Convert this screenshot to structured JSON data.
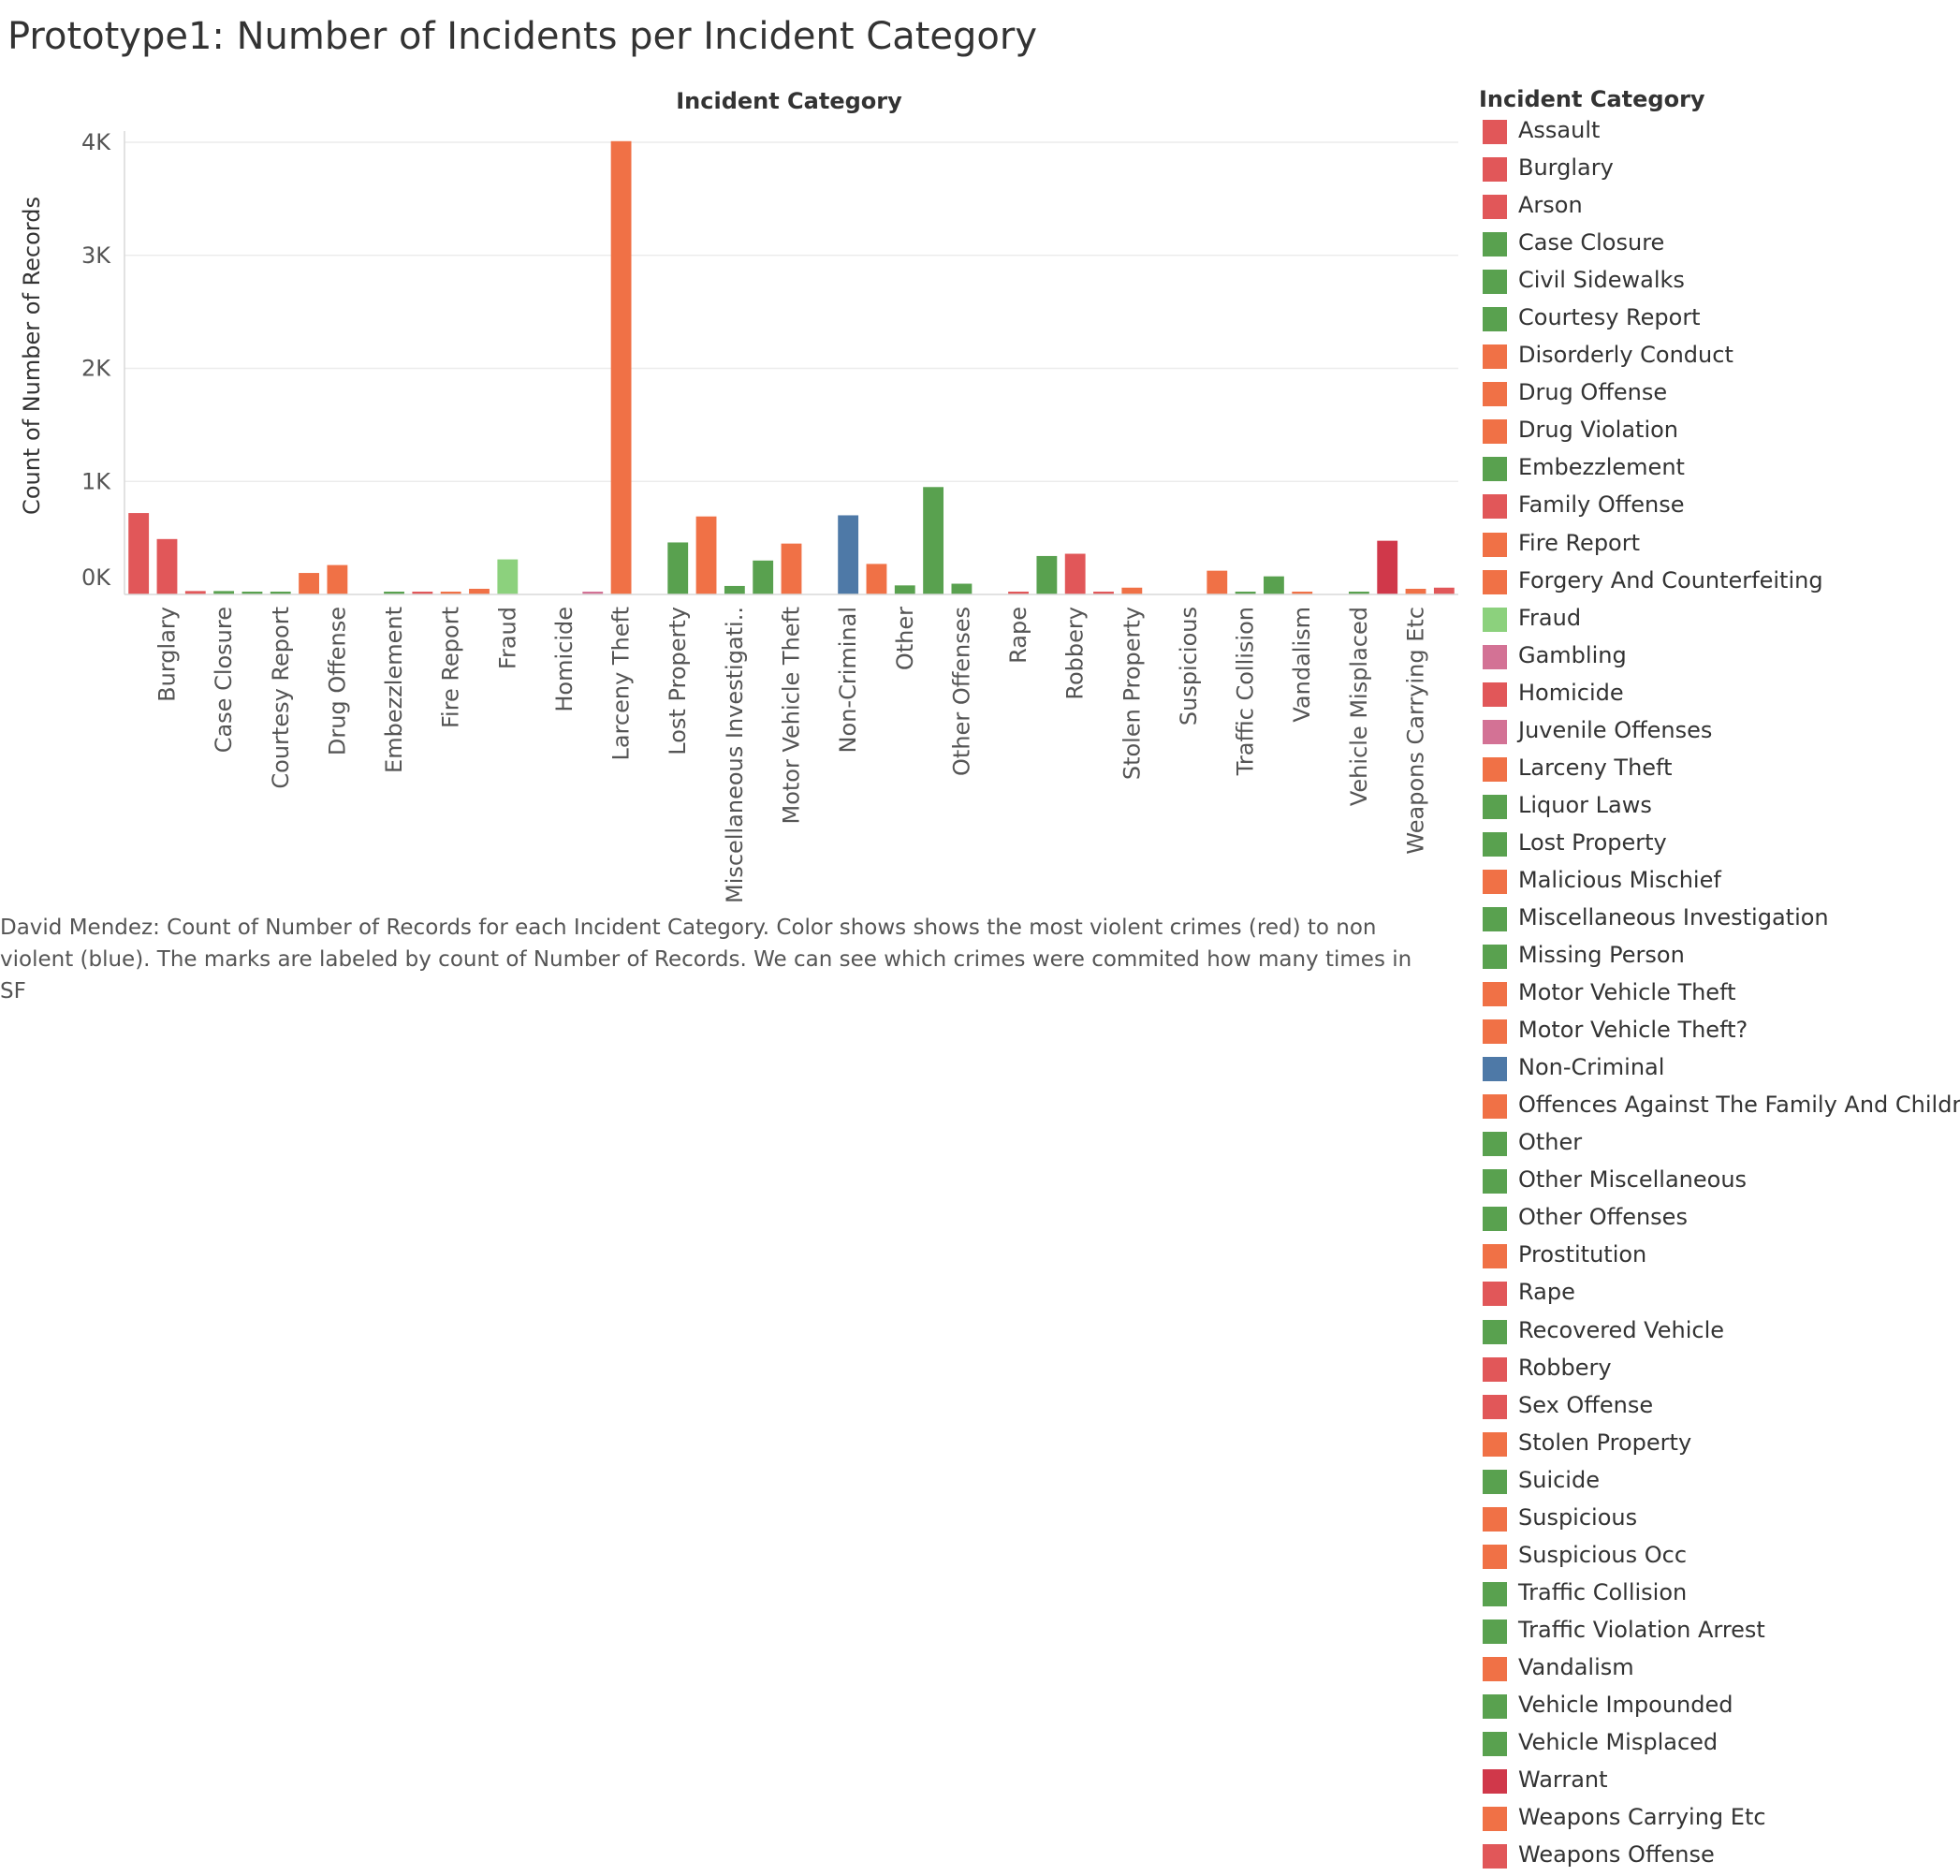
{
  "title": "Prototype1: Number of Incidents per Incident Category",
  "chart_data": {
    "type": "bar",
    "title": "Prototype1: Number of Incidents per Incident Category",
    "xlabel": "Incident Category",
    "ylabel": "Count of Number of Records",
    "ylim": [
      0,
      4000
    ],
    "yticks": [
      {
        "value": 0,
        "label": "0K"
      },
      {
        "value": 1000,
        "label": "1K"
      },
      {
        "value": 2000,
        "label": "2K"
      },
      {
        "value": 3000,
        "label": "3K"
      },
      {
        "value": 4000,
        "label": "4K"
      }
    ],
    "grid": true,
    "legend_position": "right",
    "colors": {
      "violent": "#e15759",
      "property": "#f07146",
      "non_violent": "#59a14f",
      "fraud": "#8cd17d",
      "juvenile": "#d37295",
      "non_criminal": "#4e79a7",
      "warrant": "#d0384a"
    },
    "categories": [
      "Assault",
      "Burglary",
      "Arson",
      "Case Closure",
      "Civil Sidewalks",
      "Courtesy Report",
      "Disorderly Conduct",
      "Drug Offense",
      "Drug Violation",
      "Embezzlement",
      "Family Offense",
      "Fire Report",
      "Forgery And Counterfeiting",
      "Fraud",
      "Gambling",
      "Homicide",
      "Juvenile Offenses",
      "Larceny Theft",
      "Liquor Laws",
      "Lost Property",
      "Malicious Mischief",
      "Miscellaneous Investigation",
      "Missing Person",
      "Motor Vehicle Theft",
      "Motor Vehicle Theft?",
      "Non-Criminal",
      "Offences Against The Family And Children",
      "Other",
      "Other Miscellaneous",
      "Other Offenses",
      "Prostitution",
      "Rape",
      "Recovered Vehicle",
      "Robbery",
      "Sex Offense",
      "Stolen Property",
      "Suicide",
      "Suspicious",
      "Suspicious Occ",
      "Traffic Collision",
      "Traffic Violation Arrest",
      "Vandalism",
      "Vehicle Impounded",
      "Vehicle Misplaced",
      "Warrant",
      "Weapons Carrying Etc",
      "Weapons Offense"
    ],
    "axis_labels": [
      "Burglary",
      "Case Closure",
      "Courtesy Report",
      "Drug Offense",
      "Embezzlement",
      "Fire Report",
      "Fraud",
      "Homicide",
      "Larceny Theft",
      "Lost Property",
      "Miscellaneous Investigati..",
      "Motor Vehicle Theft",
      "Non-Criminal",
      "Other",
      "Other Offenses",
      "Rape",
      "Robbery",
      "Stolen Property",
      "Suspicious",
      "Traffic Collision",
      "Vandalism",
      "Vehicle Misplaced",
      "Weapons Carrying Etc"
    ],
    "series": [
      {
        "values": [
          720,
          490,
          30,
          30,
          15,
          15,
          190,
          260,
          0,
          15,
          12,
          12,
          50,
          310,
          0,
          0,
          10,
          4010,
          0,
          460,
          690,
          75,
          300,
          450,
          0,
          700,
          270,
          80,
          950,
          95,
          0,
          10,
          340,
          360,
          25,
          60,
          0,
          0,
          210,
          10,
          160,
          10,
          0,
          15,
          475,
          50,
          60
        ]
      }
    ],
    "bar_colors": [
      "#e15759",
      "#e15759",
      "#e15759",
      "#59a14f",
      "#59a14f",
      "#59a14f",
      "#f07146",
      "#f07146",
      "#f07146",
      "#59a14f",
      "#e15759",
      "#f07146",
      "#f07146",
      "#8cd17d",
      "#d37295",
      "#e15759",
      "#d37295",
      "#f07146",
      "#59a14f",
      "#59a14f",
      "#f07146",
      "#59a14f",
      "#59a14f",
      "#f07146",
      "#f07146",
      "#4e79a7",
      "#f07146",
      "#59a14f",
      "#59a14f",
      "#59a14f",
      "#f07146",
      "#e15759",
      "#59a14f",
      "#e15759",
      "#e15759",
      "#f07146",
      "#59a14f",
      "#f07146",
      "#f07146",
      "#59a14f",
      "#59a14f",
      "#f07146",
      "#59a14f",
      "#59a14f",
      "#d0384a",
      "#f07146",
      "#e15759"
    ]
  },
  "legend": {
    "title": "Incident Category",
    "items": [
      {
        "label": "Assault",
        "color": "#e15759"
      },
      {
        "label": "Burglary",
        "color": "#e15759"
      },
      {
        "label": "Arson",
        "color": "#e15759"
      },
      {
        "label": "Case Closure",
        "color": "#59a14f"
      },
      {
        "label": "Civil Sidewalks",
        "color": "#59a14f"
      },
      {
        "label": "Courtesy Report",
        "color": "#59a14f"
      },
      {
        "label": "Disorderly Conduct",
        "color": "#f07146"
      },
      {
        "label": "Drug Offense",
        "color": "#f07146"
      },
      {
        "label": "Drug Violation",
        "color": "#f07146"
      },
      {
        "label": "Embezzlement",
        "color": "#59a14f"
      },
      {
        "label": "Family Offense",
        "color": "#e15759"
      },
      {
        "label": "Fire Report",
        "color": "#f07146"
      },
      {
        "label": "Forgery And Counterfeiting",
        "color": "#f07146"
      },
      {
        "label": "Fraud",
        "color": "#8cd17d"
      },
      {
        "label": "Gambling",
        "color": "#d37295"
      },
      {
        "label": "Homicide",
        "color": "#e15759"
      },
      {
        "label": "Juvenile Offenses",
        "color": "#d37295"
      },
      {
        "label": "Larceny Theft",
        "color": "#f07146"
      },
      {
        "label": "Liquor Laws",
        "color": "#59a14f"
      },
      {
        "label": "Lost Property",
        "color": "#59a14f"
      },
      {
        "label": "Malicious Mischief",
        "color": "#f07146"
      },
      {
        "label": "Miscellaneous Investigation",
        "color": "#59a14f"
      },
      {
        "label": "Missing Person",
        "color": "#59a14f"
      },
      {
        "label": "Motor Vehicle Theft",
        "color": "#f07146"
      },
      {
        "label": "Motor Vehicle Theft?",
        "color": "#f07146"
      },
      {
        "label": "Non-Criminal",
        "color": "#4e79a7"
      },
      {
        "label": "Offences Against The Family And Children",
        "color": "#f07146"
      },
      {
        "label": "Other",
        "color": "#59a14f"
      },
      {
        "label": "Other Miscellaneous",
        "color": "#59a14f"
      },
      {
        "label": "Other Offenses",
        "color": "#59a14f"
      },
      {
        "label": "Prostitution",
        "color": "#f07146"
      },
      {
        "label": "Rape",
        "color": "#e15759"
      },
      {
        "label": "Recovered Vehicle",
        "color": "#59a14f"
      },
      {
        "label": "Robbery",
        "color": "#e15759"
      },
      {
        "label": "Sex Offense",
        "color": "#e15759"
      },
      {
        "label": "Stolen Property",
        "color": "#f07146"
      },
      {
        "label": "Suicide",
        "color": "#59a14f"
      },
      {
        "label": "Suspicious",
        "color": "#f07146"
      },
      {
        "label": "Suspicious Occ",
        "color": "#f07146"
      },
      {
        "label": "Traffic Collision",
        "color": "#59a14f"
      },
      {
        "label": "Traffic Violation Arrest",
        "color": "#59a14f"
      },
      {
        "label": "Vandalism",
        "color": "#f07146"
      },
      {
        "label": "Vehicle Impounded",
        "color": "#59a14f"
      },
      {
        "label": "Vehicle Misplaced",
        "color": "#59a14f"
      },
      {
        "label": "Warrant",
        "color": "#d0384a"
      },
      {
        "label": "Weapons Carrying Etc",
        "color": "#f07146"
      },
      {
        "label": "Weapons Offense",
        "color": "#e15759"
      }
    ]
  },
  "caption": "David Mendez: Count of Number of Records for each Incident Category.  Color shows  shows the most violent crimes (red) to non violent (blue).  The marks are labeled by count of Number of Records. We can see which crimes were commited how many times in SF"
}
